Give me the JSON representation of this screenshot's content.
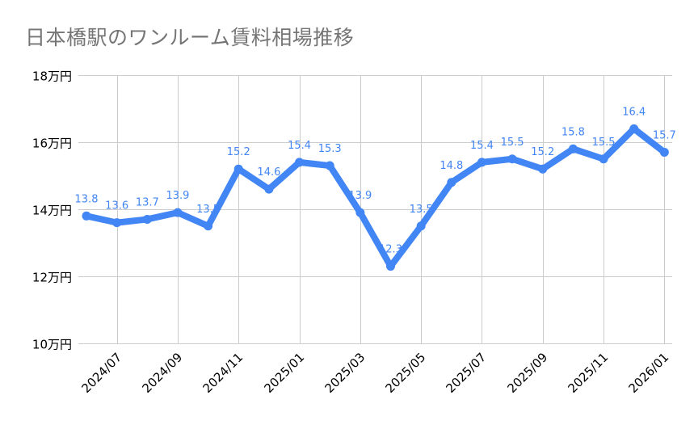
{
  "title": "日本橋駅のワンルーム賃料相場推移",
  "colors": {
    "series": "#4285f4",
    "grid": "#cccccc",
    "title": "#757575",
    "axis_text": "#000000"
  },
  "chart_data": {
    "type": "line",
    "title": "日本橋駅のワンルーム賃料相場推移",
    "xlabel": "",
    "ylabel": "",
    "ylim": [
      10,
      18
    ],
    "y_ticks": [
      10,
      12,
      14,
      16,
      18
    ],
    "y_tick_labels": [
      "10万円",
      "12万円",
      "14万円",
      "16万円",
      "18万円"
    ],
    "x": [
      "2024/06",
      "2024/07",
      "2024/08",
      "2024/09",
      "2024/10",
      "2024/11",
      "2024/12",
      "2025/01",
      "2025/02",
      "2025/03",
      "2025/04",
      "2025/05",
      "2025/06",
      "2025/07",
      "2025/08",
      "2025/09",
      "2025/10",
      "2025/11",
      "2025/12",
      "2026/01"
    ],
    "x_tick_labels": [
      "2024/07",
      "2024/09",
      "2024/11",
      "2025/01",
      "2025/03",
      "2025/05",
      "2025/07",
      "2025/09",
      "2025/11",
      "2026/01"
    ],
    "series": [
      {
        "name": "ワンルーム賃料相場",
        "unit": "万円",
        "values": [
          13.8,
          13.6,
          13.7,
          13.9,
          13.5,
          15.2,
          14.6,
          15.4,
          15.3,
          13.9,
          12.3,
          13.5,
          14.8,
          15.4,
          15.5,
          15.2,
          15.8,
          15.5,
          16.4,
          15.7
        ]
      }
    ],
    "data_labels": true,
    "grid": true,
    "legend": "none"
  }
}
